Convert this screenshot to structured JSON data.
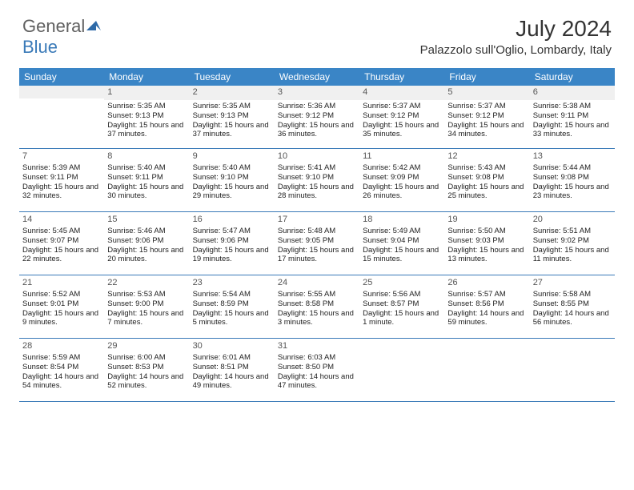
{
  "logo": {
    "general": "General",
    "blue": "Blue"
  },
  "title": {
    "month_year": "July 2024",
    "location": "Palazzolo sull'Oglio, Lombardy, Italy"
  },
  "colors": {
    "header_bg": "#3a85c6",
    "border": "#3a7ab8",
    "text": "#222222",
    "daynum": "#555555",
    "empty_bg": "#f0f0f0"
  },
  "weekdays": [
    "Sunday",
    "Monday",
    "Tuesday",
    "Wednesday",
    "Thursday",
    "Friday",
    "Saturday"
  ],
  "weeks": [
    [
      {
        "day": "",
        "sunrise": "",
        "sunset": "",
        "daylight": ""
      },
      {
        "day": "1",
        "sunrise": "Sunrise: 5:35 AM",
        "sunset": "Sunset: 9:13 PM",
        "daylight": "Daylight: 15 hours and 37 minutes."
      },
      {
        "day": "2",
        "sunrise": "Sunrise: 5:35 AM",
        "sunset": "Sunset: 9:13 PM",
        "daylight": "Daylight: 15 hours and 37 minutes."
      },
      {
        "day": "3",
        "sunrise": "Sunrise: 5:36 AM",
        "sunset": "Sunset: 9:12 PM",
        "daylight": "Daylight: 15 hours and 36 minutes."
      },
      {
        "day": "4",
        "sunrise": "Sunrise: 5:37 AM",
        "sunset": "Sunset: 9:12 PM",
        "daylight": "Daylight: 15 hours and 35 minutes."
      },
      {
        "day": "5",
        "sunrise": "Sunrise: 5:37 AM",
        "sunset": "Sunset: 9:12 PM",
        "daylight": "Daylight: 15 hours and 34 minutes."
      },
      {
        "day": "6",
        "sunrise": "Sunrise: 5:38 AM",
        "sunset": "Sunset: 9:11 PM",
        "daylight": "Daylight: 15 hours and 33 minutes."
      }
    ],
    [
      {
        "day": "7",
        "sunrise": "Sunrise: 5:39 AM",
        "sunset": "Sunset: 9:11 PM",
        "daylight": "Daylight: 15 hours and 32 minutes."
      },
      {
        "day": "8",
        "sunrise": "Sunrise: 5:40 AM",
        "sunset": "Sunset: 9:11 PM",
        "daylight": "Daylight: 15 hours and 30 minutes."
      },
      {
        "day": "9",
        "sunrise": "Sunrise: 5:40 AM",
        "sunset": "Sunset: 9:10 PM",
        "daylight": "Daylight: 15 hours and 29 minutes."
      },
      {
        "day": "10",
        "sunrise": "Sunrise: 5:41 AM",
        "sunset": "Sunset: 9:10 PM",
        "daylight": "Daylight: 15 hours and 28 minutes."
      },
      {
        "day": "11",
        "sunrise": "Sunrise: 5:42 AM",
        "sunset": "Sunset: 9:09 PM",
        "daylight": "Daylight: 15 hours and 26 minutes."
      },
      {
        "day": "12",
        "sunrise": "Sunrise: 5:43 AM",
        "sunset": "Sunset: 9:08 PM",
        "daylight": "Daylight: 15 hours and 25 minutes."
      },
      {
        "day": "13",
        "sunrise": "Sunrise: 5:44 AM",
        "sunset": "Sunset: 9:08 PM",
        "daylight": "Daylight: 15 hours and 23 minutes."
      }
    ],
    [
      {
        "day": "14",
        "sunrise": "Sunrise: 5:45 AM",
        "sunset": "Sunset: 9:07 PM",
        "daylight": "Daylight: 15 hours and 22 minutes."
      },
      {
        "day": "15",
        "sunrise": "Sunrise: 5:46 AM",
        "sunset": "Sunset: 9:06 PM",
        "daylight": "Daylight: 15 hours and 20 minutes."
      },
      {
        "day": "16",
        "sunrise": "Sunrise: 5:47 AM",
        "sunset": "Sunset: 9:06 PM",
        "daylight": "Daylight: 15 hours and 19 minutes."
      },
      {
        "day": "17",
        "sunrise": "Sunrise: 5:48 AM",
        "sunset": "Sunset: 9:05 PM",
        "daylight": "Daylight: 15 hours and 17 minutes."
      },
      {
        "day": "18",
        "sunrise": "Sunrise: 5:49 AM",
        "sunset": "Sunset: 9:04 PM",
        "daylight": "Daylight: 15 hours and 15 minutes."
      },
      {
        "day": "19",
        "sunrise": "Sunrise: 5:50 AM",
        "sunset": "Sunset: 9:03 PM",
        "daylight": "Daylight: 15 hours and 13 minutes."
      },
      {
        "day": "20",
        "sunrise": "Sunrise: 5:51 AM",
        "sunset": "Sunset: 9:02 PM",
        "daylight": "Daylight: 15 hours and 11 minutes."
      }
    ],
    [
      {
        "day": "21",
        "sunrise": "Sunrise: 5:52 AM",
        "sunset": "Sunset: 9:01 PM",
        "daylight": "Daylight: 15 hours and 9 minutes."
      },
      {
        "day": "22",
        "sunrise": "Sunrise: 5:53 AM",
        "sunset": "Sunset: 9:00 PM",
        "daylight": "Daylight: 15 hours and 7 minutes."
      },
      {
        "day": "23",
        "sunrise": "Sunrise: 5:54 AM",
        "sunset": "Sunset: 8:59 PM",
        "daylight": "Daylight: 15 hours and 5 minutes."
      },
      {
        "day": "24",
        "sunrise": "Sunrise: 5:55 AM",
        "sunset": "Sunset: 8:58 PM",
        "daylight": "Daylight: 15 hours and 3 minutes."
      },
      {
        "day": "25",
        "sunrise": "Sunrise: 5:56 AM",
        "sunset": "Sunset: 8:57 PM",
        "daylight": "Daylight: 15 hours and 1 minute."
      },
      {
        "day": "26",
        "sunrise": "Sunrise: 5:57 AM",
        "sunset": "Sunset: 8:56 PM",
        "daylight": "Daylight: 14 hours and 59 minutes."
      },
      {
        "day": "27",
        "sunrise": "Sunrise: 5:58 AM",
        "sunset": "Sunset: 8:55 PM",
        "daylight": "Daylight: 14 hours and 56 minutes."
      }
    ],
    [
      {
        "day": "28",
        "sunrise": "Sunrise: 5:59 AM",
        "sunset": "Sunset: 8:54 PM",
        "daylight": "Daylight: 14 hours and 54 minutes."
      },
      {
        "day": "29",
        "sunrise": "Sunrise: 6:00 AM",
        "sunset": "Sunset: 8:53 PM",
        "daylight": "Daylight: 14 hours and 52 minutes."
      },
      {
        "day": "30",
        "sunrise": "Sunrise: 6:01 AM",
        "sunset": "Sunset: 8:51 PM",
        "daylight": "Daylight: 14 hours and 49 minutes."
      },
      {
        "day": "31",
        "sunrise": "Sunrise: 6:03 AM",
        "sunset": "Sunset: 8:50 PM",
        "daylight": "Daylight: 14 hours and 47 minutes."
      },
      {
        "day": "",
        "sunrise": "",
        "sunset": "",
        "daylight": ""
      },
      {
        "day": "",
        "sunrise": "",
        "sunset": "",
        "daylight": ""
      },
      {
        "day": "",
        "sunrise": "",
        "sunset": "",
        "daylight": ""
      }
    ]
  ]
}
